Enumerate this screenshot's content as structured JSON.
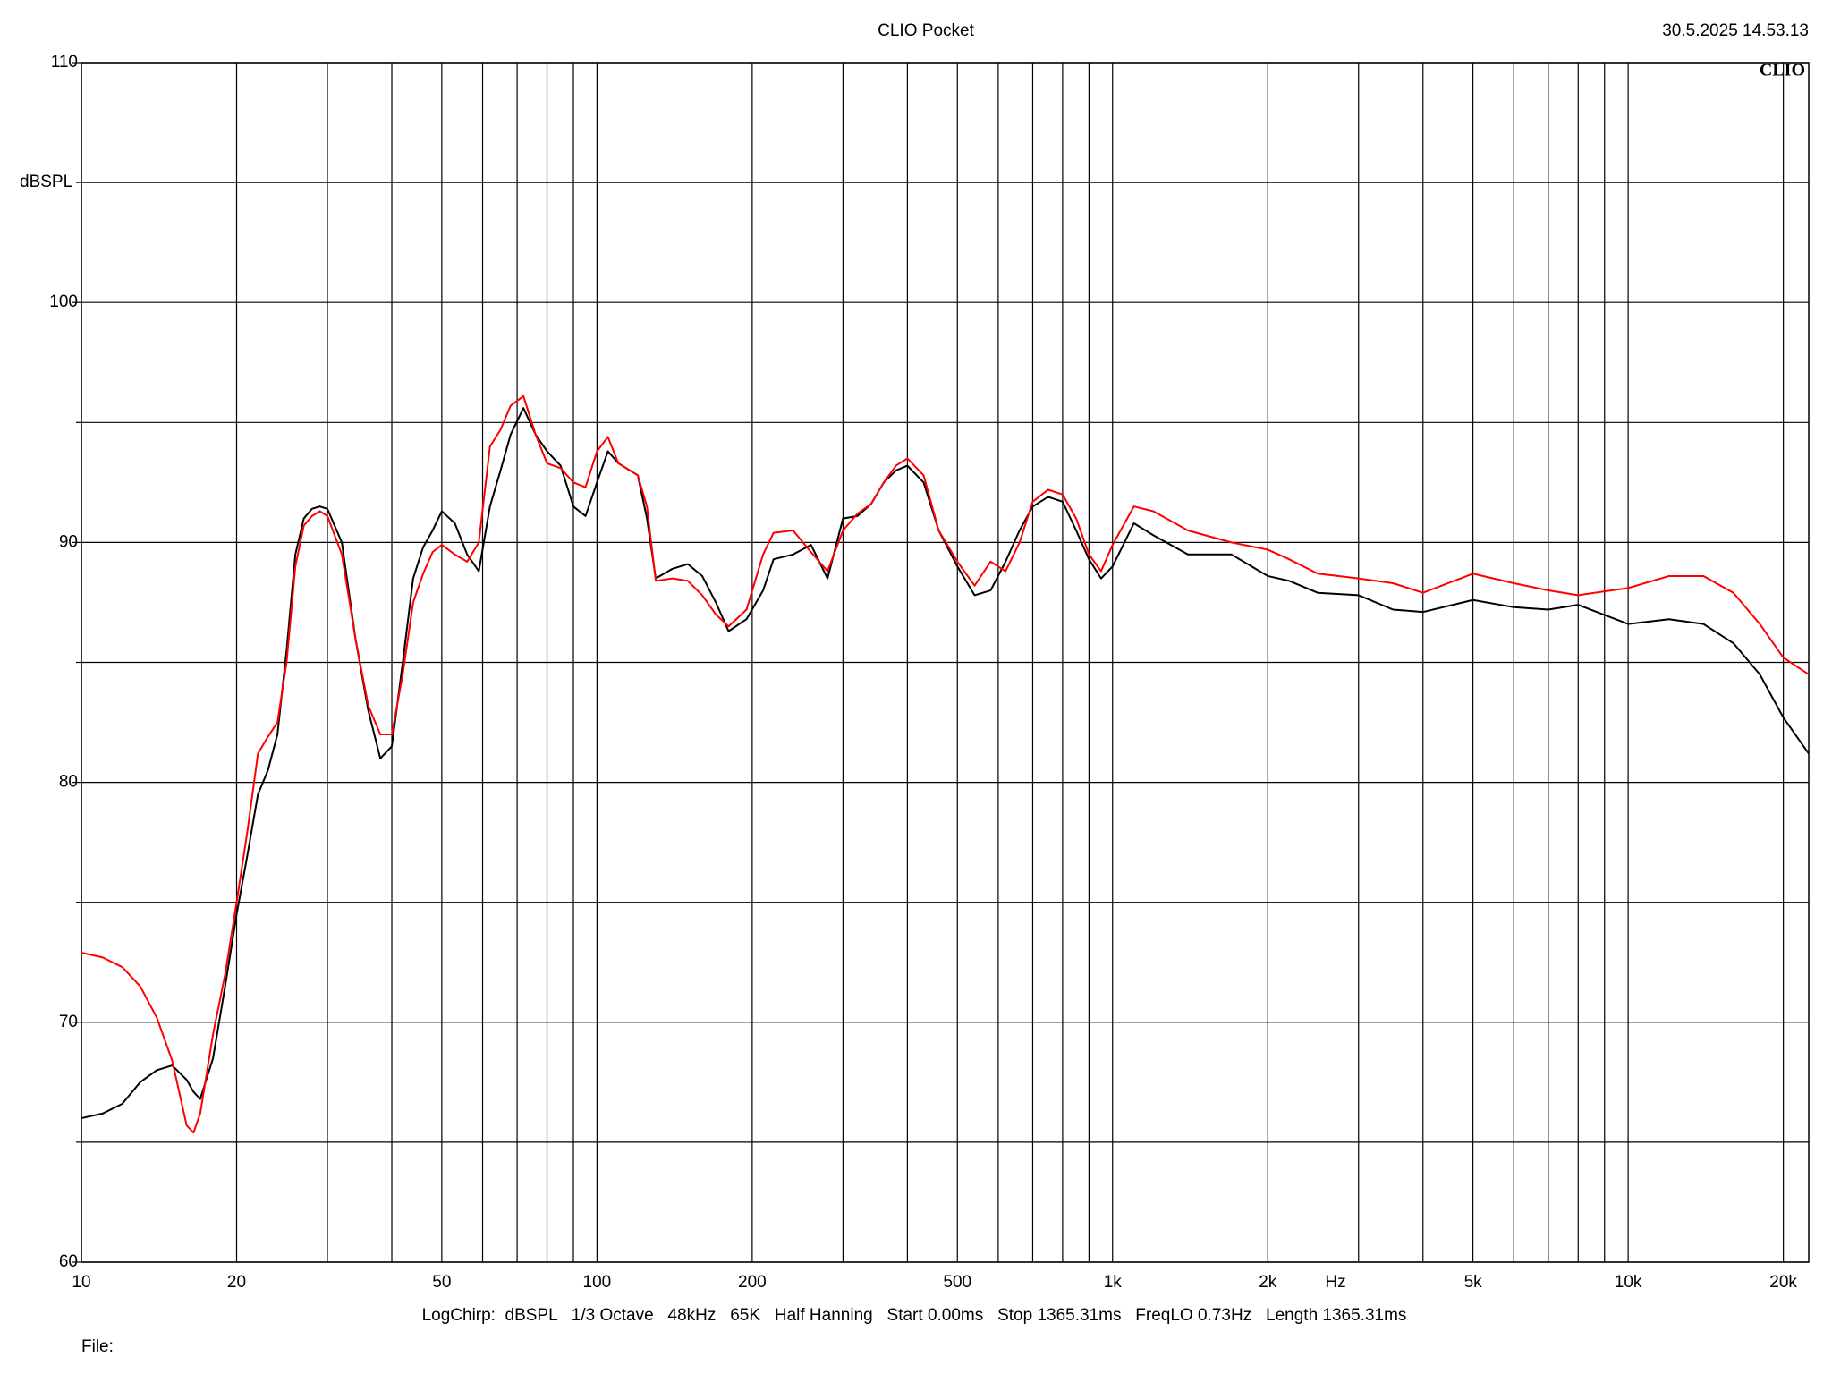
{
  "chart_data": {
    "type": "line",
    "title": "CLIO Pocket",
    "timestamp": "30.5.2025 14.53.13",
    "logo": "CLIO",
    "y_label": "dBSPL",
    "x_label": "Hz",
    "footer": "LogChirp:  dBSPL   1/3 Octave   48kHz   65K   Half Hanning   Start 0.00ms   Stop 1365.31ms   FreqLO 0.73Hz   Length 1365.31ms",
    "file_label": "File:",
    "x_log_scale": true,
    "grid": true,
    "xlim": [
      10,
      22400
    ],
    "ylim": [
      60,
      110
    ],
    "xticks": [
      10,
      20,
      50,
      100,
      200,
      500,
      {
        "value": 1000,
        "label": "1k"
      },
      {
        "value": 2000,
        "label": "2k"
      },
      {
        "value": 5000,
        "label": "5k"
      },
      {
        "value": 10000,
        "label": "10k"
      },
      {
        "value": 20000,
        "label": "20k"
      }
    ],
    "xminorticks": [
      30,
      40,
      60,
      70,
      80,
      90,
      300,
      400,
      600,
      700,
      800,
      900,
      3000,
      4000,
      6000,
      7000,
      8000,
      9000
    ],
    "yticks": [
      60,
      70,
      80,
      90,
      100,
      110
    ],
    "yminorticks": [
      65,
      75,
      85,
      95,
      105
    ],
    "x": [
      10,
      11,
      12,
      13,
      14,
      15,
      16,
      16.5,
      17,
      18,
      19,
      20,
      21,
      22,
      23,
      24,
      25,
      26,
      27,
      28,
      29,
      30,
      32,
      34,
      36,
      38,
      40,
      42,
      44,
      46,
      48,
      50,
      53,
      56,
      59,
      62,
      65,
      68,
      72,
      76,
      80,
      85,
      90,
      95,
      100,
      105,
      110,
      120,
      125,
      130,
      140,
      150,
      160,
      170,
      180,
      195,
      210,
      220,
      240,
      260,
      280,
      300,
      320,
      340,
      360,
      380,
      400,
      430,
      460,
      500,
      540,
      580,
      620,
      660,
      700,
      750,
      800,
      850,
      900,
      950,
      1000,
      1100,
      1200,
      1400,
      1700,
      2000,
      2200,
      2500,
      3000,
      3500,
      4000,
      5000,
      6000,
      7000,
      8000,
      10000,
      12000,
      14000,
      16000,
      18000,
      20000,
      22400
    ],
    "series": [
      {
        "color": "#000000",
        "values": [
          66,
          66.2,
          66.6,
          67.5,
          68.0,
          68.2,
          67.6,
          67.1,
          66.8,
          68.5,
          71.5,
          74.5,
          77,
          79.5,
          80.5,
          82,
          85.5,
          89.5,
          91,
          91.4,
          91.5,
          91.4,
          90,
          86,
          83,
          81,
          81.5,
          85,
          88.5,
          89.8,
          90.5,
          91.3,
          90.8,
          89.5,
          88.8,
          91.5,
          93,
          94.5,
          95.6,
          94.5,
          93.8,
          93.2,
          91.5,
          91.1,
          92.5,
          93.8,
          93.3,
          92.8,
          91,
          88.5,
          88.9,
          89.1,
          88.6,
          87.5,
          86.3,
          86.8,
          88,
          89.3,
          89.5,
          89.9,
          88.5,
          91,
          91.1,
          91.6,
          92.5,
          93,
          93.2,
          92.5,
          90.5,
          89,
          87.8,
          88,
          89.2,
          90.5,
          91.5,
          91.9,
          91.7,
          90.5,
          89.3,
          88.5,
          89,
          90.8,
          90.3,
          89.5,
          89.5,
          88.6,
          88.4,
          87.9,
          87.8,
          87.2,
          87.1,
          87.6,
          87.3,
          87.2,
          87.4,
          86.6,
          86.8,
          86.6,
          85.8,
          84.5,
          82.7,
          81.2
        ]
      },
      {
        "color": "#ff0000",
        "values": [
          72.9,
          72.7,
          72.3,
          71.5,
          70.2,
          68.4,
          65.7,
          65.4,
          66.2,
          69.5,
          72,
          75,
          78,
          81.2,
          81.9,
          82.5,
          85,
          89,
          90.7,
          91.1,
          91.3,
          91.1,
          89.5,
          86,
          83.2,
          82,
          82,
          84.5,
          87.5,
          88.7,
          89.6,
          89.9,
          89.5,
          89.2,
          90,
          94,
          94.7,
          95.7,
          96.1,
          94.5,
          93.3,
          93.1,
          92.5,
          92.3,
          93.8,
          94.4,
          93.3,
          92.8,
          91.5,
          88.4,
          88.5,
          88.4,
          87.8,
          87,
          86.5,
          87.2,
          89.5,
          90.4,
          90.5,
          89.6,
          88.8,
          90.5,
          91.2,
          91.6,
          92.5,
          93.2,
          93.5,
          92.8,
          90.5,
          89.2,
          88.2,
          89.2,
          88.8,
          90,
          91.7,
          92.2,
          92,
          91,
          89.5,
          88.8,
          89.9,
          91.5,
          91.3,
          90.5,
          90,
          89.7,
          89.3,
          88.7,
          88.5,
          88.3,
          87.9,
          88.7,
          88.3,
          88,
          87.8,
          88.1,
          88.6,
          88.6,
          87.9,
          86.6,
          85.2,
          84.5
        ]
      }
    ]
  }
}
